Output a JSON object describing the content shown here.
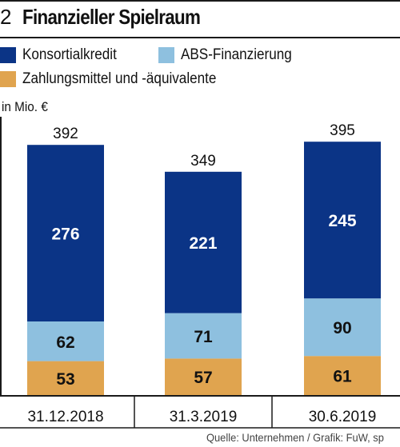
{
  "header": {
    "number": "2",
    "title": "Finanzieller Spielraum"
  },
  "legend": [
    {
      "label": "Konsortialkredit",
      "color": "#0b3486"
    },
    {
      "label": "ABS-Finanzierung",
      "color": "#8ec0df"
    },
    {
      "label": "Zahlungsmittel und -äquivalente",
      "color": "#e0a44f"
    }
  ],
  "unit_label": "in Mio. €",
  "source": "Quelle: Unternehmen / Grafik: FuW, sp",
  "chart_data": {
    "type": "bar",
    "stacked": true,
    "categories": [
      "31.12.2018",
      "31.3.2019",
      "30.6.2019"
    ],
    "series": [
      {
        "name": "Zahlungsmittel und -äquivalente",
        "values": [
          53,
          57,
          61
        ],
        "color": "#e0a44f"
      },
      {
        "name": "ABS-Finanzierung",
        "values": [
          62,
          71,
          90
        ],
        "color": "#8ec0df"
      },
      {
        "name": "Konsortialkredit",
        "values": [
          276,
          221,
          245
        ],
        "color": "#0b3486"
      }
    ],
    "totals": [
      392,
      349,
      395
    ],
    "title": "Finanzieller Spielraum",
    "ylabel": "in Mio. €",
    "ylim": [
      0,
      395
    ],
    "grid": false,
    "legend_position": "top-left"
  }
}
